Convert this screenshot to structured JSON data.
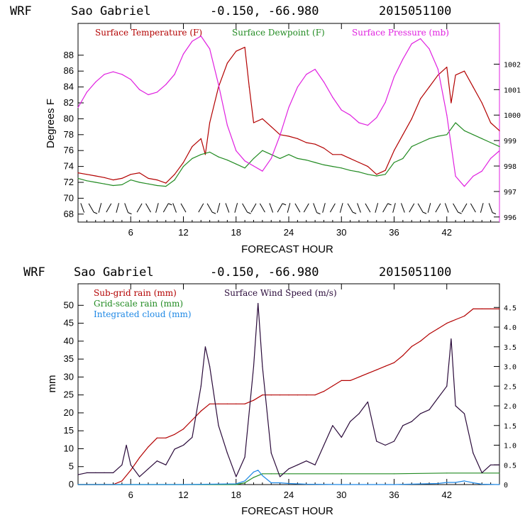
{
  "colors": {
    "temperature": "#b30000",
    "dewpoint": "#228b22",
    "pressure": "#e020e0",
    "subgrid": "#b30000",
    "gridscale": "#228b22",
    "cloud": "#1e88e5",
    "wind": "#2a0a3a",
    "barbs": "#000000"
  },
  "top_header": {
    "model": "WRF",
    "station": "Sao Gabriel",
    "coords": "-0.150, -66.980",
    "run": "2015051100"
  },
  "bottom_header": {
    "model": "WRF",
    "station": "Sao Gabriel",
    "coords": "-0.150, -66.980",
    "run": "2015051100"
  },
  "chart_data": [
    {
      "type": "line",
      "title": "WRF Sao Gabriel -0.150, -66.980 2015051100",
      "xlabel": "FORECAST HOUR",
      "ylabel": "Degrees F",
      "y2label": "",
      "xlim": [
        0,
        48
      ],
      "ylim": [
        67,
        92
      ],
      "y2lim": [
        995.8,
        1003.6
      ],
      "xticks": [
        "6",
        "12",
        "18",
        "24",
        "30",
        "36",
        "42"
      ],
      "xtick_values": [
        6,
        12,
        18,
        24,
        30,
        36,
        42
      ],
      "yticks": [
        "68",
        "70",
        "72",
        "74",
        "76",
        "78",
        "80",
        "82",
        "84",
        "86",
        "88"
      ],
      "ytick_values": [
        68,
        70,
        72,
        74,
        76,
        78,
        80,
        82,
        84,
        86,
        88
      ],
      "y2ticks": [
        "996",
        "997",
        "998",
        "999",
        "1000",
        "1001",
        "1002"
      ],
      "y2tick_values": [
        996,
        997,
        998,
        999,
        1000,
        1001,
        1002
      ],
      "legend": [
        "Surface Temperature (F)",
        "Surface Dewpoint (F)",
        "Surface Pressure (mb)"
      ],
      "series": [
        {
          "name": "Surface Temperature (F)",
          "axis": "left",
          "x": [
            0,
            1,
            2,
            3,
            4,
            5,
            6,
            7,
            8,
            9,
            10,
            11,
            12,
            13,
            14,
            14.5,
            15,
            16,
            17,
            18,
            19,
            19.5,
            20,
            21,
            22,
            23,
            24,
            25,
            26,
            27,
            28,
            29,
            30,
            31,
            32,
            33,
            34,
            35,
            36,
            37,
            38,
            39,
            40,
            41,
            42,
            42.5,
            43,
            44,
            45,
            46,
            47,
            48
          ],
          "values": [
            73.2,
            73.0,
            72.8,
            72.6,
            72.3,
            72.5,
            73.0,
            73.2,
            72.5,
            72.3,
            71.9,
            73.0,
            74.5,
            76.5,
            77.5,
            75.5,
            79.5,
            84.0,
            87.0,
            88.5,
            89.0,
            84.0,
            79.5,
            80.0,
            79.0,
            78.0,
            77.8,
            77.5,
            77.0,
            76.8,
            76.3,
            75.5,
            75.5,
            75.0,
            74.5,
            74.0,
            73.0,
            73.5,
            76.0,
            78.0,
            80.0,
            82.5,
            84.0,
            85.5,
            86.5,
            82.0,
            85.5,
            86.0,
            84.0,
            82.0,
            79.5,
            78.5
          ]
        },
        {
          "name": "Surface Dewpoint (F)",
          "axis": "left",
          "x": [
            0,
            1,
            2,
            3,
            4,
            5,
            6,
            7,
            8,
            9,
            10,
            11,
            12,
            13,
            14,
            15,
            16,
            17,
            18,
            19,
            20,
            21,
            22,
            23,
            24,
            25,
            26,
            27,
            28,
            29,
            30,
            31,
            32,
            33,
            34,
            35,
            36,
            37,
            38,
            39,
            40,
            41,
            42,
            43,
            44,
            45,
            46,
            47,
            48
          ],
          "values": [
            72.5,
            72.2,
            72.0,
            71.8,
            71.6,
            71.7,
            72.3,
            72.0,
            71.8,
            71.6,
            71.5,
            72.3,
            74.0,
            75.0,
            75.5,
            75.8,
            75.2,
            74.8,
            74.3,
            73.8,
            75.0,
            76.0,
            75.5,
            75.0,
            75.5,
            75.0,
            74.8,
            74.5,
            74.2,
            74.0,
            73.8,
            73.5,
            73.3,
            73.0,
            72.8,
            73.0,
            74.5,
            75.0,
            76.5,
            77.0,
            77.5,
            77.8,
            78.0,
            79.5,
            78.5,
            78.0,
            77.5,
            77.0,
            76.5
          ]
        },
        {
          "name": "Surface Pressure (mb)",
          "axis": "right",
          "x": [
            0,
            1,
            2,
            3,
            4,
            5,
            6,
            7,
            8,
            9,
            10,
            11,
            12,
            13,
            14,
            15,
            16,
            17,
            18,
            19,
            20,
            21,
            22,
            23,
            24,
            25,
            26,
            27,
            28,
            29,
            30,
            31,
            32,
            33,
            34,
            35,
            36,
            37,
            38,
            39,
            40,
            41,
            42,
            43,
            44,
            45,
            46,
            47,
            48
          ],
          "values": [
            1000.3,
            1000.9,
            1001.3,
            1001.6,
            1001.7,
            1001.6,
            1001.4,
            1001.0,
            1000.8,
            1000.9,
            1001.2,
            1001.6,
            1002.4,
            1002.9,
            1003.1,
            1002.6,
            1001.2,
            999.6,
            998.6,
            998.2,
            998.0,
            997.8,
            998.3,
            999.2,
            1000.3,
            1001.1,
            1001.6,
            1001.8,
            1001.3,
            1000.7,
            1000.2,
            1000.0,
            999.7,
            999.6,
            999.9,
            1000.5,
            1001.5,
            1002.2,
            1002.8,
            1003.0,
            1002.6,
            1001.8,
            1000.0,
            997.6,
            997.2,
            997.6,
            997.8,
            998.3,
            998.6
          ]
        }
      ],
      "wind_barb_hours": [
        0.5,
        1.5,
        2.5,
        3.5,
        4.5,
        5.5,
        7,
        8,
        9,
        10,
        11,
        12,
        14,
        15,
        16,
        17,
        18,
        19,
        20,
        21,
        22,
        23,
        24,
        25,
        26,
        27,
        28,
        29,
        30,
        31,
        32,
        33,
        34,
        35,
        36,
        37,
        38,
        39,
        40,
        41,
        42,
        43,
        44,
        45,
        46,
        47
      ]
    },
    {
      "type": "line",
      "title": "WRF Sao Gabriel -0.150, -66.980 2015051100",
      "xlabel": "FORECAST HOUR",
      "ylabel": "mm",
      "xlim": [
        0,
        48
      ],
      "ylim": [
        0,
        56
      ],
      "y2lim": [
        0,
        5.1
      ],
      "xticks": [
        "6",
        "12",
        "18",
        "24",
        "30",
        "36",
        "42"
      ],
      "xtick_values": [
        6,
        12,
        18,
        24,
        30,
        36,
        42
      ],
      "yticks": [
        "0",
        "5",
        "10",
        "15",
        "20",
        "25",
        "30",
        "35",
        "40",
        "45",
        "50"
      ],
      "ytick_values": [
        0,
        5,
        10,
        15,
        20,
        25,
        30,
        35,
        40,
        45,
        50
      ],
      "y2ticks": [
        "0",
        "0.5",
        "1.0",
        "1.5",
        "2.0",
        "2.5",
        "3.0",
        "3.5",
        "4.0",
        "4.5"
      ],
      "y2tick_values": [
        0,
        0.5,
        1.0,
        1.5,
        2.0,
        2.5,
        3.0,
        3.5,
        4.0,
        4.5
      ],
      "legend": [
        "Sub-grid rain (mm)",
        "Grid-scale rain (mm)",
        "Integrated cloud (mm)",
        "Surface Wind Speed (m/s)"
      ],
      "series": [
        {
          "name": "Sub-grid rain (mm)",
          "axis": "left",
          "x": [
            0,
            4,
            5,
            6,
            7,
            8,
            9,
            10,
            11,
            12,
            13,
            14,
            15,
            16,
            17,
            18,
            19,
            20,
            21,
            22,
            23,
            24,
            25,
            26,
            27,
            28,
            29,
            30,
            31,
            32,
            33,
            34,
            35,
            36,
            37,
            38,
            39,
            40,
            41,
            42,
            43,
            44,
            45,
            46,
            47,
            48
          ],
          "values": [
            0,
            0,
            1.0,
            4.0,
            7.5,
            10.5,
            13.0,
            13.0,
            14.0,
            15.5,
            18.0,
            20.5,
            22.5,
            22.5,
            22.5,
            22.5,
            22.5,
            23.5,
            25.0,
            25.0,
            25.0,
            25.0,
            25.0,
            25.0,
            25.0,
            26.0,
            27.5,
            29.0,
            29.0,
            30.0,
            31.0,
            32.0,
            33.0,
            34.0,
            36.0,
            38.5,
            40.0,
            42.0,
            43.5,
            45.0,
            46.0,
            47.0,
            49.0,
            49.0,
            49.0,
            49.0
          ]
        },
        {
          "name": "Grid-scale rain (mm)",
          "axis": "left",
          "x": [
            0,
            18,
            19,
            20,
            21,
            22,
            24,
            30,
            36,
            42,
            48
          ],
          "values": [
            0,
            0,
            0.5,
            2.0,
            3.0,
            3.0,
            3.0,
            3.0,
            3.0,
            3.2,
            3.2
          ]
        },
        {
          "name": "Integrated cloud (mm)",
          "axis": "left",
          "x": [
            0,
            12,
            18,
            19,
            20,
            20.5,
            21,
            22,
            23,
            24,
            26,
            30,
            36,
            41,
            42,
            43,
            44,
            45,
            46,
            48
          ],
          "values": [
            0,
            0,
            0.2,
            1.0,
            3.5,
            4.0,
            2.5,
            0.5,
            0.5,
            0.3,
            0.1,
            0,
            0,
            0.3,
            0.6,
            0.6,
            1.0,
            0.5,
            0.1,
            0
          ]
        },
        {
          "name": "Surface Wind Speed (m/s)",
          "axis": "right",
          "x": [
            0,
            1,
            2,
            3,
            4,
            5,
            5.5,
            6,
            7,
            8,
            9,
            10,
            11,
            12,
            13,
            14,
            14.5,
            15,
            16,
            17,
            18,
            19,
            20,
            20.5,
            21,
            22,
            23,
            24,
            25,
            26,
            27,
            28,
            29,
            30,
            31,
            32,
            33,
            34,
            35,
            36,
            37,
            38,
            39,
            40,
            41,
            42,
            42.5,
            43,
            44,
            45,
            46,
            47,
            48
          ],
          "values": [
            0.25,
            0.3,
            0.3,
            0.3,
            0.3,
            0.5,
            1.0,
            0.5,
            0.2,
            0.4,
            0.6,
            0.5,
            0.9,
            1.0,
            1.2,
            2.5,
            3.5,
            3.0,
            1.5,
            0.8,
            0.2,
            0.7,
            3.0,
            4.6,
            3.0,
            0.8,
            0.2,
            0.4,
            0.5,
            0.6,
            0.5,
            1.0,
            1.5,
            1.2,
            1.6,
            1.8,
            2.1,
            1.1,
            1.0,
            1.1,
            1.5,
            1.6,
            1.8,
            1.9,
            2.2,
            2.5,
            3.7,
            2.0,
            1.8,
            0.8,
            0.3,
            0.5,
            0.5
          ]
        }
      ]
    }
  ]
}
